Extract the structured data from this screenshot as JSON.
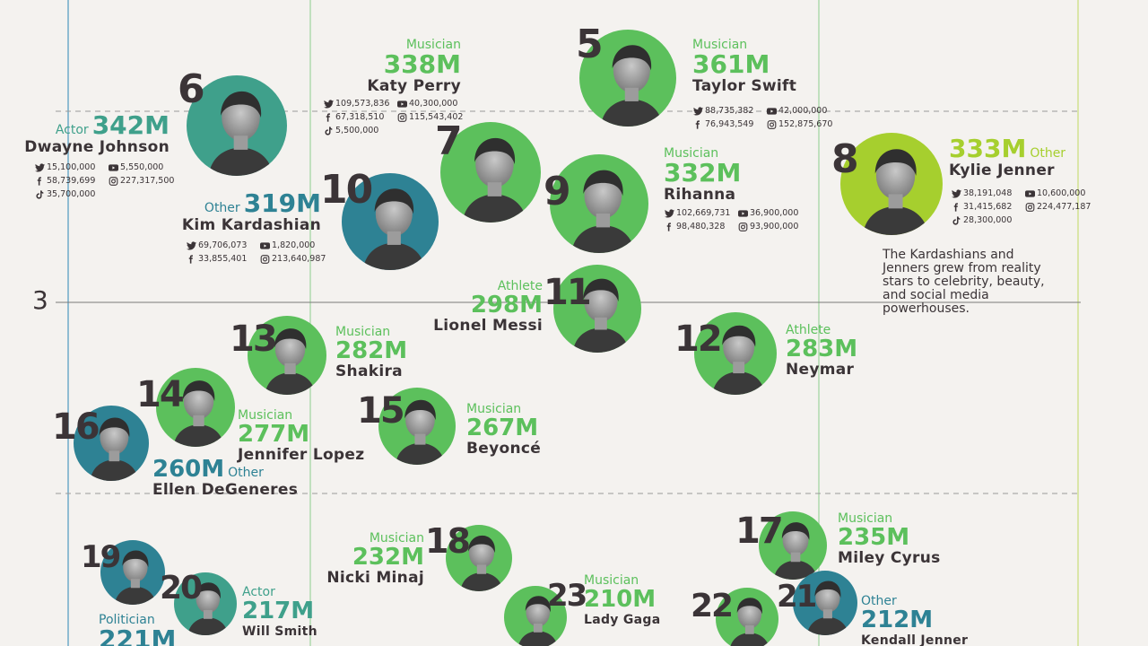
{
  "chart_data": {
    "type": "scatter",
    "title": "",
    "xlabel": "",
    "ylabel": "",
    "y_tick_labels": [
      "3"
    ],
    "grid": true,
    "colors": {
      "Actor": "#3fa08b",
      "Musician": "#5cc05c",
      "Other_teal": "#2e8294",
      "Athlete": "#5cc05c",
      "Other_lime": "#a6cf2e",
      "Politician": "#2e8294",
      "text": "#3b3437",
      "background": "#f4f2ef"
    },
    "points": [
      {
        "rank": "5",
        "category": "Musician",
        "total": "361M",
        "name": "Taylor Swift",
        "stats": {
          "twitter": "88,735,382",
          "youtube": "42,000,000",
          "facebook": "76,943,549",
          "instagram": "152,875,670"
        }
      },
      {
        "rank": "",
        "category": "Musician",
        "total": "338M",
        "name": "Katy Perry",
        "stats": {
          "twitter": "109,573,836",
          "youtube": "40,300,000",
          "facebook": "67,318,510",
          "instagram": "115,543,402",
          "tiktok": "5,500,000"
        }
      },
      {
        "rank": "6",
        "category": "Actor",
        "total": "342M",
        "name": "Dwayne Johnson",
        "stats": {
          "twitter": "15,100,000",
          "youtube": "5,550,000",
          "facebook": "58,739,699",
          "instagram": "227,317,500",
          "tiktok": "35,700,000"
        }
      },
      {
        "rank": "7",
        "category": "",
        "total": "",
        "name": "",
        "stats": {}
      },
      {
        "rank": "8",
        "category": "Other",
        "total": "333M",
        "name": "Kylie Jenner",
        "stats": {
          "twitter": "38,191,048",
          "youtube": "10,600,000",
          "facebook": "31,415,682",
          "instagram": "224,477,187",
          "tiktok": "28,300,000"
        }
      },
      {
        "rank": "9",
        "category": "Musician",
        "total": "332M",
        "name": "Rihanna",
        "stats": {
          "twitter": "102,669,731",
          "youtube": "36,900,000",
          "facebook": "98,480,328",
          "instagram": "93,900,000"
        }
      },
      {
        "rank": "10",
        "category": "Other",
        "total": "319M",
        "name": "Kim Kardashian",
        "stats": {
          "twitter": "69,706,073",
          "youtube": "1,820,000",
          "facebook": "33,855,401",
          "instagram": "213,640,987"
        }
      },
      {
        "rank": "11",
        "category": "Athlete",
        "total": "298M",
        "name": "Lionel Messi",
        "stats": {}
      },
      {
        "rank": "12",
        "category": "Athlete",
        "total": "283M",
        "name": "Neymar",
        "stats": {}
      },
      {
        "rank": "13",
        "category": "Musician",
        "total": "282M",
        "name": "Shakira",
        "stats": {}
      },
      {
        "rank": "14",
        "category": "Musician",
        "total": "277M",
        "name": "Jennifer Lopez",
        "stats": {}
      },
      {
        "rank": "15",
        "category": "Musician",
        "total": "267M",
        "name": "Beyoncé",
        "stats": {}
      },
      {
        "rank": "16",
        "category": "Other",
        "total": "260M",
        "name": "Ellen DeGeneres",
        "stats": {}
      },
      {
        "rank": "17",
        "category": "Musician",
        "total": "235M",
        "name": "Miley Cyrus",
        "stats": {}
      },
      {
        "rank": "18",
        "category": "Musician",
        "total": "232M",
        "name": "Nicki Minaj",
        "stats": {}
      },
      {
        "rank": "19",
        "category": "Politician",
        "total": "221M",
        "name": "",
        "stats": {}
      },
      {
        "rank": "20",
        "category": "Actor",
        "total": "217M",
        "name": "Will Smith",
        "stats": {}
      },
      {
        "rank": "21",
        "category": "Other",
        "total": "212M",
        "name": "Kendall Jenner",
        "stats": {}
      },
      {
        "rank": "22",
        "category": "",
        "total": "",
        "name": "",
        "stats": {}
      },
      {
        "rank": "23",
        "category": "Musician",
        "total": "210M",
        "name": "Lady Gaga",
        "stats": {}
      }
    ],
    "annotation": "The Kardashians and Jenners grew from reality stars to celebrity, beauty, and social media powerhouses."
  }
}
